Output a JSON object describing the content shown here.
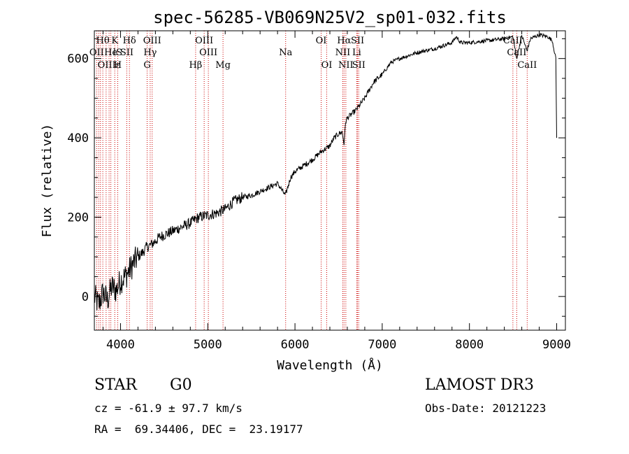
{
  "chart_data": {
    "type": "line",
    "title": "spec-56285-VB069N25V2_sp01-032.fits",
    "xlabel": "Wavelength (Å)",
    "ylabel": "Flux (relative)",
    "xlim": [
      3700,
      9100
    ],
    "ylim": [
      -85,
      670
    ],
    "x_ticks": [
      4000,
      5000,
      6000,
      7000,
      8000,
      9000
    ],
    "y_ticks": [
      0,
      200,
      400,
      600
    ],
    "series": [
      {
        "name": "flux",
        "x": [
          3700,
          3750,
          3800,
          3850,
          3900,
          3950,
          4000,
          4050,
          4100,
          4150,
          4200,
          4250,
          4300,
          4350,
          4400,
          4450,
          4500,
          4600,
          4700,
          4800,
          4860,
          4900,
          5000,
          5100,
          5200,
          5300,
          5400,
          5500,
          5600,
          5700,
          5800,
          5890,
          5950,
          6000,
          6100,
          6200,
          6300,
          6400,
          6450,
          6500,
          6540,
          6563,
          6580,
          6600,
          6700,
          6800,
          6900,
          7000,
          7100,
          7200,
          7400,
          7600,
          7800,
          7850,
          7900,
          8000,
          8200,
          8400,
          8500,
          8540,
          8600,
          8660,
          8700,
          8800,
          8900,
          8950,
          8990,
          9000
        ],
        "y": [
          0,
          -20,
          10,
          -10,
          25,
          15,
          40,
          50,
          65,
          85,
          100,
          110,
          125,
          130,
          140,
          150,
          155,
          165,
          175,
          185,
          195,
          200,
          205,
          210,
          220,
          240,
          250,
          255,
          265,
          275,
          285,
          255,
          300,
          315,
          330,
          345,
          365,
          380,
          400,
          410,
          415,
          385,
          440,
          450,
          470,
          500,
          540,
          560,
          590,
          600,
          615,
          625,
          640,
          655,
          640,
          640,
          645,
          650,
          655,
          600,
          658,
          620,
          650,
          660,
          655,
          645,
          600,
          400
        ]
      }
    ],
    "line_markers": [
      {
        "label": "Hθ",
        "wavelength": 3797,
        "row": 0
      },
      {
        "label": "K",
        "wavelength": 3934,
        "row": 0
      },
      {
        "label": "Hδ",
        "wavelength": 4102,
        "row": 0
      },
      {
        "label": "OIII",
        "wavelength": 4363,
        "row": 0
      },
      {
        "label": "OIII",
        "wavelength": 4959,
        "row": 0
      },
      {
        "label": "OI",
        "wavelength": 6300,
        "row": 0
      },
      {
        "label": "Hα",
        "wavelength": 6563,
        "row": 0
      },
      {
        "label": "SII",
        "wavelength": 6717,
        "row": 0
      },
      {
        "label": "CaII",
        "wavelength": 8498,
        "row": 0
      },
      {
        "label": "OII",
        "wavelength": 3727,
        "row": 1
      },
      {
        "label": "He",
        "wavelength": 3889,
        "row": 1
      },
      {
        "label": "lS",
        "wavelength": 3968,
        "row": 1
      },
      {
        "label": "SII",
        "wavelength": 4072,
        "row": 1
      },
      {
        "label": "Hγ",
        "wavelength": 4340,
        "row": 1
      },
      {
        "label": "OIII",
        "wavelength": 5007,
        "row": 1
      },
      {
        "label": "Na",
        "wavelength": 5893,
        "row": 1
      },
      {
        "label": "NII",
        "wavelength": 6548,
        "row": 1
      },
      {
        "label": "Li",
        "wavelength": 6708,
        "row": 1
      },
      {
        "label": "CaII",
        "wavelength": 8542,
        "row": 1
      },
      {
        "label": "OIIIε",
        "wavelength": 3869,
        "row": 2
      },
      {
        "label": "H",
        "wavelength": 3968,
        "row": 2
      },
      {
        "label": "G",
        "wavelength": 4305,
        "row": 2
      },
      {
        "label": "Hβ",
        "wavelength": 4861,
        "row": 2
      },
      {
        "label": "Mg",
        "wavelength": 5175,
        "row": 2
      },
      {
        "label": "OI",
        "wavelength": 6364,
        "row": 2
      },
      {
        "label": "NII",
        "wavelength": 6583,
        "row": 2
      },
      {
        "label": "SII",
        "wavelength": 6731,
        "row": 2
      },
      {
        "label": "CaII",
        "wavelength": 8662,
        "row": 2
      }
    ],
    "marker_lines": [
      3727,
      3750,
      3770,
      3797,
      3835,
      3869,
      3889,
      3934,
      3968,
      4072,
      4102,
      4305,
      4340,
      4363,
      4861,
      4959,
      5007,
      5175,
      5893,
      6300,
      6364,
      6548,
      6563,
      6583,
      6708,
      6717,
      6731,
      8498,
      8542,
      8662
    ]
  },
  "info": {
    "object_class": "STAR",
    "subclass": "G0",
    "survey": "LAMOST DR3",
    "redshift": "cz = -61.9 ± 97.7 km/s",
    "obs_date": "Obs-Date: 20121223",
    "coords": "RA =  69.34406, DEC =  23.19177"
  }
}
